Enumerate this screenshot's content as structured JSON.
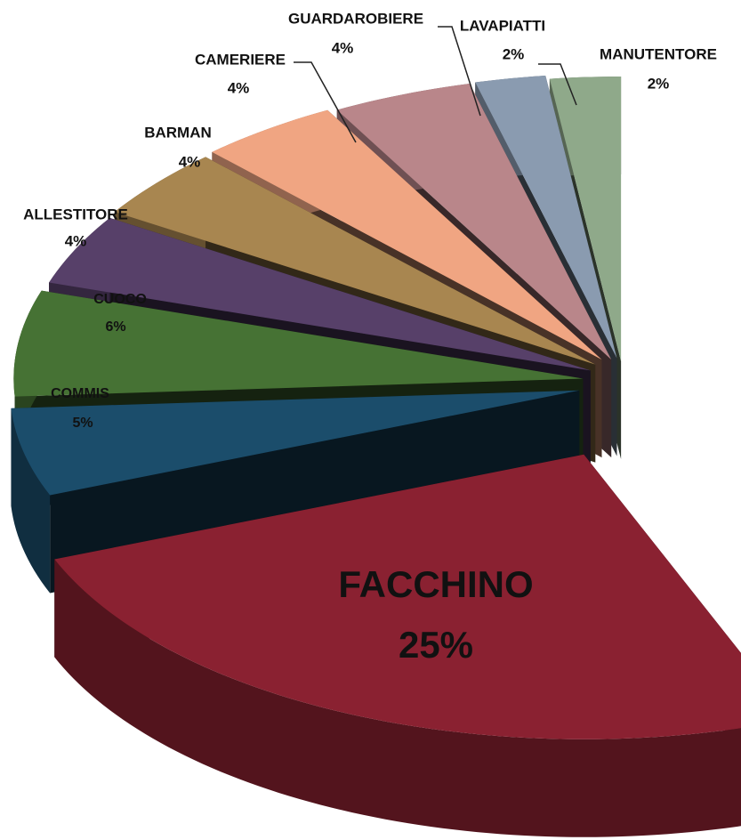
{
  "chart_data": {
    "type": "pie3d",
    "categories": [
      "MANUTENTORE",
      "LAVAPIATTI",
      "GUARDAROBIERE",
      "CAMERIERE",
      "BARMAN",
      "ALLESTITORE",
      "CUOCO",
      "COMMIS",
      "FACCHINO"
    ],
    "values": [
      2,
      2,
      4,
      4,
      4,
      4,
      6,
      5,
      25
    ],
    "value_labels": [
      "2%",
      "2%",
      "4%",
      "4%",
      "4%",
      "4%",
      "6%",
      "5%",
      "25%"
    ],
    "colors": [
      "#8fa98a",
      "#8a9bb0",
      "#b9868a",
      "#f0a582",
      "#a88650",
      "#574069",
      "#467234",
      "#1b4d6b",
      "#8a2131"
    ]
  }
}
